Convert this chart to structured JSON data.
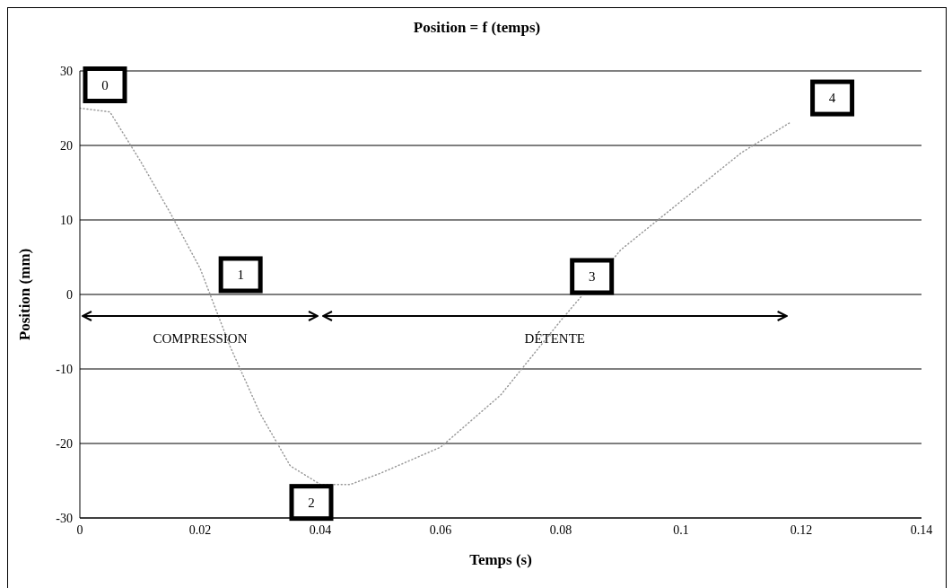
{
  "chart_data": {
    "type": "line",
    "title": "Position = f (temps)",
    "xlabel": "Temps (s)",
    "ylabel": "Position (mm)",
    "x": [
      0,
      0.005,
      0.01,
      0.015,
      0.02,
      0.025,
      0.03,
      0.035,
      0.04,
      0.045,
      0.05,
      0.06,
      0.07,
      0.08,
      0.09,
      0.1,
      0.11,
      0.118
    ],
    "series": [
      {
        "color": "#999999",
        "values": [
          25,
          24.5,
          18,
          11,
          3.5,
          -7,
          -16,
          -23,
          -25.5,
          -25.5,
          -24,
          -20.5,
          -13.5,
          -3.5,
          6,
          12.5,
          19,
          23
        ]
      }
    ],
    "xlim": [
      0,
      0.14
    ],
    "xticks": [
      0,
      0.02,
      0.04,
      0.06,
      0.08,
      0.1,
      0.12,
      0.14
    ],
    "ylim": [
      -30,
      30
    ],
    "yticks": [
      -30,
      -20,
      -10,
      0,
      10,
      20,
      30
    ],
    "grid": "y",
    "legend": false,
    "marker": "none",
    "line_style": "dotted",
    "annotations": [
      "0",
      "1",
      "2",
      "3",
      "4",
      "COMPRESSION",
      "DÉTENTE"
    ]
  }
}
